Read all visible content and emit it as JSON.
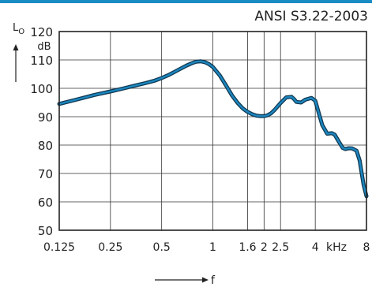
{
  "header": {
    "standard": "ANSI S3.22-2003",
    "accent_color": "#1a8cc4"
  },
  "chart_data": {
    "type": "line",
    "title": "ANSI S3.22-2003",
    "ylabel": "L",
    "ylabel_subscript": "O",
    "yunit": "dB",
    "xlabel": "f",
    "xunit": "kHz",
    "xscale": "log",
    "xlim": [
      0.125,
      8
    ],
    "ylim": [
      50,
      120
    ],
    "grid": true,
    "x_ticks": [
      0.125,
      0.25,
      0.5,
      1,
      1.6,
      2,
      2.5,
      4,
      8
    ],
    "x_tick_labels": [
      "0.125",
      "0.25",
      "0.5",
      "1",
      "1.6",
      "2",
      "2.5",
      "4",
      "8"
    ],
    "x_grid": [
      0.25,
      0.5,
      1,
      1.6,
      2,
      2.5,
      4
    ],
    "y_ticks": [
      50,
      60,
      70,
      80,
      90,
      100,
      110,
      120
    ],
    "y_tick_labels": [
      "50",
      "60",
      "70",
      "80",
      "90",
      "100",
      "110",
      "120"
    ],
    "line_color": "#1b86c0",
    "line_outline": "#123a52",
    "series": [
      {
        "x": [
          0.125,
          0.16,
          0.2,
          0.25,
          0.3,
          0.35,
          0.4,
          0.45,
          0.5,
          0.55,
          0.6,
          0.65,
          0.7,
          0.75,
          0.8,
          0.85,
          0.9,
          0.95,
          1.0,
          1.1,
          1.2,
          1.3,
          1.4,
          1.5,
          1.6,
          1.7,
          1.8,
          1.9,
          2.0,
          2.1,
          2.2,
          2.3,
          2.5,
          2.7,
          2.9,
          3.0,
          3.1,
          3.3,
          3.5,
          3.8,
          4.0,
          4.2,
          4.4,
          4.7,
          5.0,
          5.2,
          5.5,
          5.8,
          6.0,
          6.3,
          6.6,
          7.0,
          7.3,
          7.5,
          7.7,
          8.0
        ],
        "values": [
          94.5,
          96.1,
          97.6,
          98.9,
          100.0,
          101.0,
          101.8,
          102.6,
          103.6,
          104.7,
          105.9,
          107.0,
          108.0,
          108.8,
          109.4,
          109.5,
          109.2,
          108.5,
          107.5,
          104.5,
          100.8,
          97.4,
          94.8,
          92.9,
          91.7,
          90.9,
          90.4,
          90.2,
          90.2,
          90.5,
          91.2,
          92.3,
          94.8,
          96.8,
          97.0,
          96.2,
          95.2,
          95.0,
          96.0,
          96.6,
          95.6,
          91.2,
          87.0,
          84.0,
          84.2,
          83.7,
          81.2,
          79.0,
          78.6,
          78.9,
          78.8,
          78.0,
          74.5,
          70.0,
          66.0,
          62.0
        ]
      }
    ]
  }
}
